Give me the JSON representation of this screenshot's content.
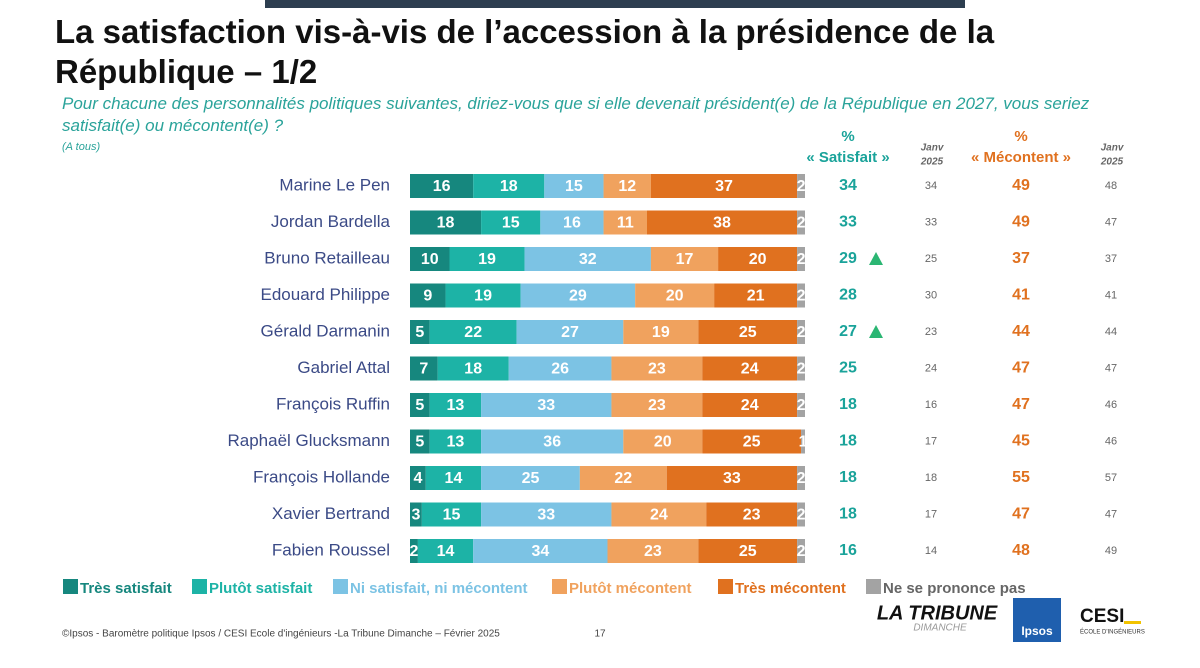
{
  "chart_data": {
    "type": "bar",
    "orientation": "horizontal",
    "stacked": true,
    "title": "La satisfaction vis-à-vis de l’accession à la présidence de la République – 1/2",
    "subtitle": "Pour chacune des personnalités politiques suivantes, diriez-vous que si elle devenait président(e) de la République en 2027, vous seriez satisfait(e) ou mécontent(e) ?",
    "note": "(A tous)",
    "categories": [
      "Marine Le Pen",
      "Jordan Bardella",
      "Bruno Retailleau",
      "Edouard Philippe",
      "Gérald Darmanin",
      "Gabriel Attal",
      "François Ruffin",
      "Raphaël Glucksmann",
      "François Hollande",
      "Xavier Bertrand",
      "Fabien Roussel"
    ],
    "xlim": [
      0,
      100
    ],
    "series": [
      {
        "name": "Très satisfait",
        "color": "#16877e",
        "values": [
          16,
          18,
          10,
          9,
          5,
          7,
          5,
          5,
          4,
          3,
          2
        ]
      },
      {
        "name": "Plutôt satisfait",
        "color": "#1db3a6",
        "values": [
          18,
          15,
          19,
          19,
          22,
          18,
          13,
          13,
          14,
          15,
          14
        ]
      },
      {
        "name": "Ni satisfait, ni mécontent",
        "color": "#7cc3e4",
        "values": [
          15,
          16,
          32,
          29,
          27,
          26,
          33,
          36,
          25,
          33,
          34
        ]
      },
      {
        "name": "Plutôt mécontent",
        "color": "#f0a25e",
        "values": [
          12,
          11,
          17,
          20,
          19,
          23,
          23,
          20,
          22,
          24,
          23
        ]
      },
      {
        "name": "Très mécontent",
        "color": "#e0711f",
        "values": [
          37,
          38,
          20,
          21,
          25,
          24,
          24,
          25,
          33,
          23,
          25
        ]
      },
      {
        "name": "Ne se prononce pas",
        "color": "#a3a3a3",
        "values": [
          2,
          2,
          2,
          2,
          2,
          2,
          2,
          1,
          2,
          2,
          2
        ]
      }
    ],
    "columns": [
      {
        "header_lines": [
          "%",
          "« Satisfait »"
        ],
        "color": "#1aa39a",
        "bold": true,
        "values": [
          34,
          33,
          29,
          28,
          27,
          25,
          18,
          18,
          18,
          18,
          16
        ]
      },
      {
        "header_lines": [
          "Janv",
          "2025"
        ],
        "color": "#666666",
        "bold": false,
        "values": [
          34,
          33,
          25,
          30,
          23,
          24,
          16,
          17,
          18,
          17,
          14
        ]
      },
      {
        "header_lines": [
          "%",
          "« Mécontent »"
        ],
        "color": "#e0711f",
        "bold": true,
        "values": [
          49,
          49,
          37,
          41,
          44,
          47,
          47,
          45,
          55,
          47,
          48
        ]
      },
      {
        "header_lines": [
          "Janv",
          "2025"
        ],
        "color": "#666666",
        "bold": false,
        "values": [
          48,
          47,
          37,
          41,
          44,
          47,
          46,
          46,
          57,
          47,
          49
        ]
      }
    ],
    "up_arrows": [
      false,
      false,
      true,
      false,
      true,
      false,
      false,
      false,
      false,
      false,
      false
    ],
    "arrow_color": "#2bb673"
  },
  "footer": {
    "source": "©Ipsos - Baromètre politique Ipsos / CESI Ecole d'ingénieurs -La Tribune Dimanche – Février 2025",
    "page": "17",
    "logos": {
      "tribune": "LA TRIBUNE",
      "tribune_sub": "DIMANCHE",
      "ipsos": "Ipsos",
      "cesi": "CESI",
      "cesi_sub": "ÉCOLE D'INGÉNIEURS"
    }
  }
}
